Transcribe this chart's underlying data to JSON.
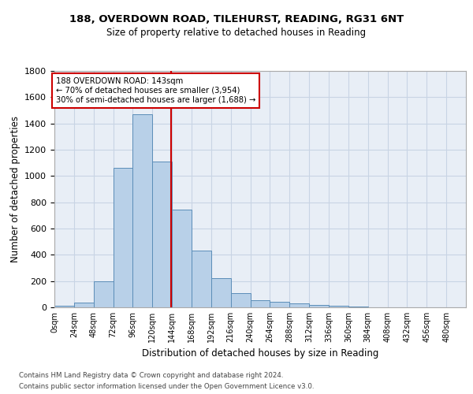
{
  "title1": "188, OVERDOWN ROAD, TILEHURST, READING, RG31 6NT",
  "title2": "Size of property relative to detached houses in Reading",
  "xlabel": "Distribution of detached houses by size in Reading",
  "ylabel": "Number of detached properties",
  "bar_values": [
    10,
    35,
    200,
    1060,
    1470,
    1110,
    745,
    430,
    225,
    110,
    55,
    45,
    30,
    20,
    10,
    5,
    2,
    1,
    1,
    0,
    0
  ],
  "bin_edges": [
    0,
    24,
    48,
    72,
    96,
    120,
    144,
    168,
    192,
    216,
    240,
    264,
    288,
    312,
    336,
    360,
    384,
    408,
    432,
    456,
    480,
    504
  ],
  "tick_labels": [
    "0sqm",
    "24sqm",
    "48sqm",
    "72sqm",
    "96sqm",
    "120sqm",
    "144sqm",
    "168sqm",
    "192sqm",
    "216sqm",
    "240sqm",
    "264sqm",
    "288sqm",
    "312sqm",
    "336sqm",
    "360sqm",
    "384sqm",
    "408sqm",
    "432sqm",
    "456sqm",
    "480sqm"
  ],
  "bar_color": "#b8d0e8",
  "bar_edge_color": "#5b8db8",
  "vline_x": 143,
  "vline_color": "#cc0000",
  "annotation_text": "188 OVERDOWN ROAD: 143sqm\n← 70% of detached houses are smaller (3,954)\n30% of semi-detached houses are larger (1,688) →",
  "annotation_box_color": "#ffffff",
  "annotation_box_edge": "#cc0000",
  "ylim": [
    0,
    1800
  ],
  "yticks": [
    0,
    200,
    400,
    600,
    800,
    1000,
    1200,
    1400,
    1600,
    1800
  ],
  "grid_color": "#c8d4e4",
  "bg_color": "#e8eef6",
  "footer1": "Contains HM Land Registry data © Crown copyright and database right 2024.",
  "footer2": "Contains public sector information licensed under the Open Government Licence v3.0."
}
